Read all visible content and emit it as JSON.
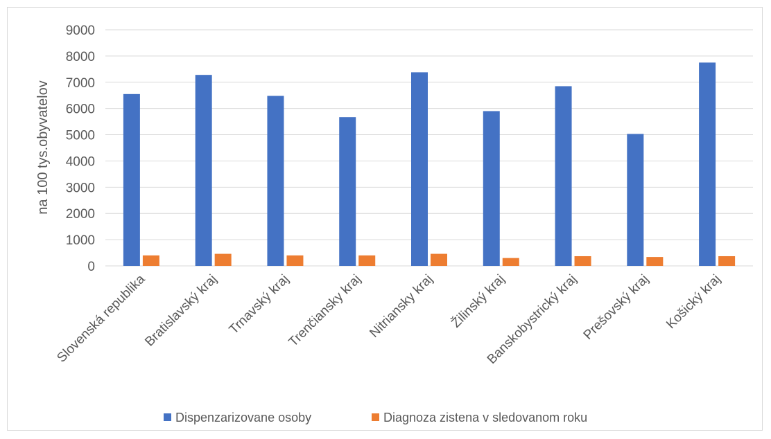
{
  "chart_data": {
    "type": "bar",
    "title": "",
    "xlabel": "",
    "ylabel": "na 100 tys.obyvatelov",
    "ylim": [
      0,
      9000
    ],
    "yticks": [
      0,
      1000,
      2000,
      3000,
      4000,
      5000,
      6000,
      7000,
      8000,
      9000
    ],
    "grid": true,
    "legend_position": "bottom",
    "categories": [
      "Slovenská republika",
      "Bratislavský kraj",
      "Trnavský kraj",
      "Trenčiansky kraj",
      "Nitriansky kraj",
      "Žilinský kraj",
      "Banskobystrický kraj",
      "Prešovský kraj",
      "Košický kraj"
    ],
    "series": [
      {
        "name": "Dispenzarizovane osoby",
        "color": "#4472c4",
        "values": [
          6550,
          7280,
          6480,
          5670,
          7380,
          5900,
          6850,
          5030,
          7750
        ]
      },
      {
        "name": "Diagnoza zistena v sledovanom roku",
        "color": "#ed7d31",
        "values": [
          400,
          460,
          400,
          400,
          460,
          300,
          370,
          340,
          370
        ]
      }
    ]
  }
}
